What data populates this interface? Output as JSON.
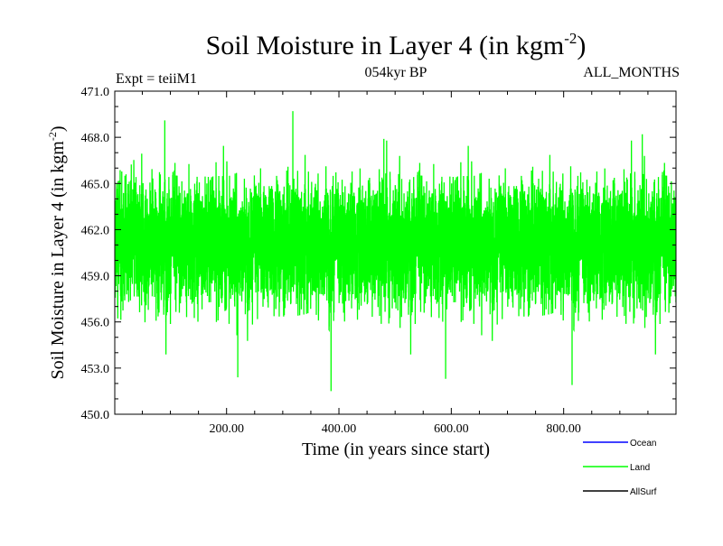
{
  "header": {
    "title_main": "Soil Moisture in Layer 4 (in kgm",
    "title_sup": "-2",
    "title_close": ")",
    "left_label": "Expt = teiiM1",
    "center_label": "054kyr BP",
    "right_label": "ALL_MONTHS"
  },
  "colors": {
    "ocean": "#0000ff",
    "land": "#00ff00",
    "allsurf": "#000000"
  },
  "chart_data": {
    "type": "line",
    "title": "Soil Moisture in Layer 4 (in kgm-2)",
    "xlabel": "Time (in years since start)",
    "ylabel_main": "Soil Moisture in Layer 4 (in kgm",
    "ylabel_sup": "-2",
    "ylabel_close": ")",
    "xlim": [
      1,
      1000
    ],
    "ylim": [
      450.0,
      471.0
    ],
    "x_ticks": [
      200,
      400,
      600,
      800
    ],
    "x_tick_labels": [
      "200.00",
      "400.00",
      "600.00",
      "800.00"
    ],
    "y_ticks": [
      450,
      453,
      456,
      459,
      462,
      465,
      468,
      471
    ],
    "y_tick_labels": [
      "450.0",
      "453.0",
      "456.0",
      "459.0",
      "462.0",
      "465.0",
      "468.0",
      "471.0"
    ],
    "series": [
      {
        "name": "Land",
        "color": "#00ff00",
        "mean": 461.2,
        "approx_min": 451.5,
        "approx_max": 469.7,
        "peaks": [
          [
            90,
            469.1
          ],
          [
            318,
            469.7
          ],
          [
            480,
            467.9
          ],
          [
            940,
            468.2
          ]
        ],
        "troughs": [
          [
            386,
            451.5
          ],
          [
            815,
            451.9
          ],
          [
            590,
            452.3
          ],
          [
            220,
            452.4
          ]
        ]
      }
    ],
    "legend": {
      "placement": "bottom-right",
      "entries": [
        {
          "name": "Ocean",
          "color": "#0000ff"
        },
        {
          "name": "Land",
          "color": "#00ff00"
        },
        {
          "name": "AllSurf",
          "color": "#000000"
        }
      ]
    }
  }
}
